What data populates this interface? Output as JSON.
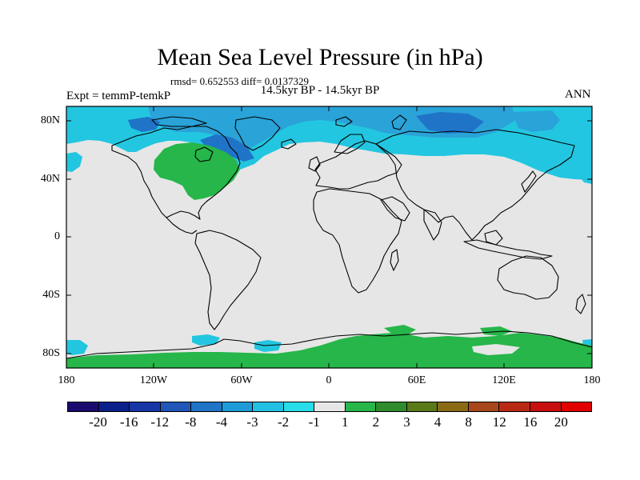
{
  "title": "Mean Sea Level Pressure (in hPa)",
  "stats": "rmsd= 0.652553 diff= 0.0137329",
  "period": "14.5kyr BP - 14.5kyr BP",
  "expt": "Expt = temmP-temkP",
  "season": "ANN",
  "lat_labels": [
    "80N",
    "40N",
    "0",
    "40S",
    "80S"
  ],
  "lon_labels": [
    "180",
    "120W",
    "60W",
    "0",
    "60E",
    "120E",
    "180"
  ],
  "colorbar": {
    "labels": [
      "-20",
      "-16",
      "-12",
      "-8",
      "-4",
      "-3",
      "-2",
      "-1",
      "1",
      "2",
      "3",
      "4",
      "8",
      "12",
      "16",
      "20"
    ],
    "colors": [
      "#1a0a6e",
      "#0b1f8a",
      "#1736a6",
      "#1f56b8",
      "#1f74c8",
      "#1e9ad8",
      "#23c0e3",
      "#28dce8",
      "#e6e6e6",
      "#26b64a",
      "#2f8c2c",
      "#5a7a1a",
      "#8a6a14",
      "#a8471a",
      "#b82a14",
      "#c80f0f",
      "#e00000"
    ]
  },
  "colors": {
    "background": "#e6e6e6",
    "cyan": "#23c6e0",
    "light_blue": "#2aa3d8",
    "blue": "#1f74c8",
    "green": "#26b64a",
    "coast": "#000000"
  }
}
